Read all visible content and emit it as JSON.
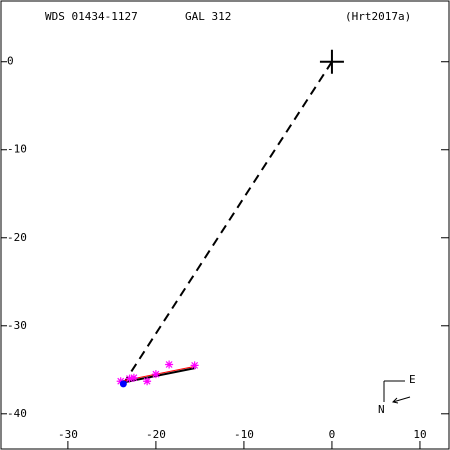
{
  "chart_data": {
    "type": "scatter",
    "title": "WDS 01434-1127",
    "subtitle": "GAL 312",
    "reference": "(Hrt2017a)",
    "xlim": [
      -37.6,
      13.3
    ],
    "ylim": [
      -44,
      6.9
    ],
    "xticks": [
      -30,
      -20,
      -10,
      0,
      10
    ],
    "yticks": [
      0,
      -10,
      -20,
      -30,
      -40
    ],
    "primary": {
      "x": 0,
      "y": 0
    },
    "observations": {
      "color": "#ff00ff",
      "x": [
        -15.6,
        -18.5,
        -20.0,
        -21.0,
        -22.5,
        -23.0,
        -24.0
      ],
      "y": [
        -34.5,
        -34.4,
        -35.5,
        -36.3,
        -35.9,
        -36.0,
        -36.3
      ]
    },
    "predicted": {
      "x": -23.7,
      "y": -36.6,
      "color": "#0000ff"
    },
    "fit": {
      "x": [
        -24.0,
        -15.5
      ],
      "y": [
        -36.5,
        -34.8
      ],
      "color": "#000000"
    },
    "model": {
      "x": [
        -24.0,
        -15.5
      ],
      "y": [
        -36.3,
        -34.6
      ],
      "color": "#ff0000"
    },
    "compass": {
      "east": "E",
      "north": "N"
    }
  }
}
